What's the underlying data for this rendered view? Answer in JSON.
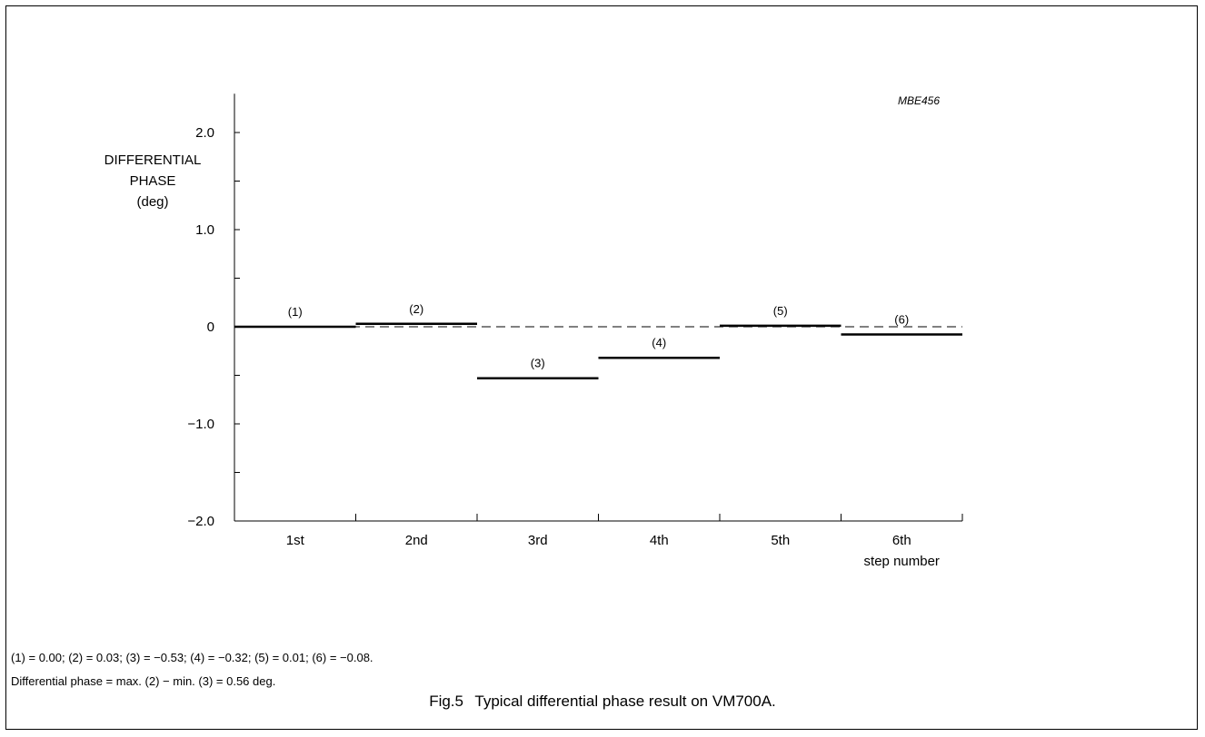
{
  "chart_data": {
    "type": "line",
    "title": "",
    "code": "MBE456",
    "ylabel": [
      "DIFFERENTIAL",
      "PHASE",
      "(deg)"
    ],
    "xlabel": "step number",
    "ylim": [
      -2.0,
      2.4
    ],
    "yticks": [
      -2.0,
      -1.5,
      -1.0,
      -0.5,
      0,
      0.5,
      1.0,
      1.5,
      2.0
    ],
    "yticklabels": [
      "−2.0",
      "",
      "−1.0",
      "",
      "0",
      "",
      "1.0",
      "",
      "2.0"
    ],
    "categories": [
      "1st",
      "2nd",
      "3rd",
      "4th",
      "5th",
      "6th"
    ],
    "series": [
      {
        "labels": [
          "(1)",
          "(2)",
          "(3)",
          "(4)",
          "(5)",
          "(6)"
        ],
        "values": [
          0.0,
          0.03,
          -0.53,
          -0.32,
          0.01,
          -0.08
        ]
      }
    ],
    "reference_line": 0,
    "grid": false
  },
  "notes": [
    "(1) = 0.00; (2) = 0.03; (3) = −0.53; (4) = −0.32; (5) = 0.01; (6) = −0.08.",
    "Differential phase = max. (2) − min. (3) = 0.56 deg."
  ],
  "caption": {
    "number": "Fig.5",
    "text": "Typical differential phase result on VM700A."
  }
}
